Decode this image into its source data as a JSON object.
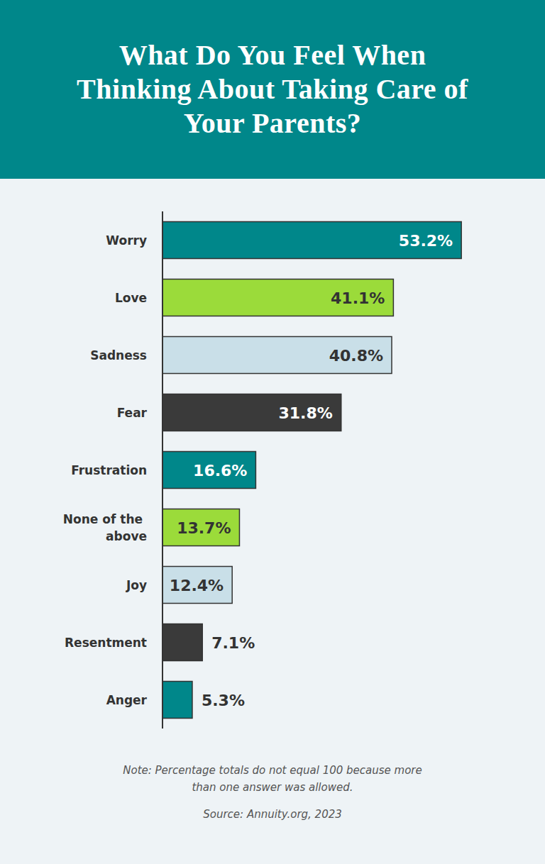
{
  "chart_data": {
    "type": "bar",
    "orientation": "horizontal",
    "title": "What Do You Feel When Thinking About Taking Care of Your Parents?",
    "categories": [
      "Worry",
      "Love",
      "Sadness",
      "Fear",
      "Frustration",
      "None of the above",
      "Joy",
      "Resentment",
      "Anger"
    ],
    "values": [
      53.2,
      41.1,
      40.8,
      31.8,
      16.6,
      13.7,
      12.4,
      7.1,
      5.3
    ],
    "value_labels": [
      "53.2%",
      "41.1%",
      "40.8%",
      "31.8%",
      "16.6%",
      "13.7%",
      "12.4%",
      "7.1%",
      "5.3%"
    ],
    "colors": [
      "#00878a",
      "#9bdb3a",
      "#c9dfe8",
      "#3a3a3a",
      "#00878a",
      "#9bdb3a",
      "#c9dfe8",
      "#3a3a3a",
      "#00878a"
    ],
    "xlim": [
      0,
      60
    ],
    "data_labels": true,
    "tick_labels": "y",
    "grid": false,
    "note": "Note: Percentage totals do not equal 100 because more than one answer was allowed.",
    "source": "Source: Annuity.org, 2023"
  }
}
